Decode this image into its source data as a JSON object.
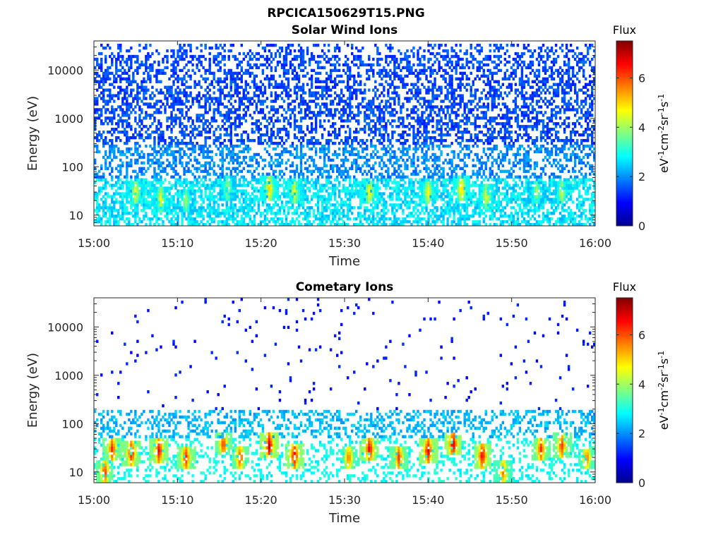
{
  "figure_title": "RPCICA150629T15.PNG",
  "colormap": [
    "#00008f",
    "#0000ff",
    "#0080ff",
    "#00ffff",
    "#80ff80",
    "#ffff00",
    "#ff8000",
    "#ff0000",
    "#800000"
  ],
  "chart_data": [
    {
      "type": "heatmap",
      "title": "Solar Wind Ions",
      "xlabel": "Time",
      "ylabel": "Energy (eV)",
      "x_range": [
        "15:00",
        "16:00"
      ],
      "x_ticks": [
        "15:00",
        "15:10",
        "15:20",
        "15:30",
        "15:40",
        "15:50",
        "16:00"
      ],
      "y_scale": "log",
      "y_range": [
        6,
        40000
      ],
      "y_ticks": [
        "10",
        "100",
        "1000",
        "10000"
      ],
      "colorbar": {
        "title": "Flux",
        "unit": "eV-1cm-2sr-1s-1",
        "range": [
          0,
          7.5
        ],
        "ticks": [
          "0",
          "2",
          "4",
          "6"
        ]
      },
      "description": "Dense speckle at flux ~1-2 from ~50 eV to ~30000 eV; flux ~2-3 between 10-80 eV; patches ~4-5 near 20-40 eV",
      "patches": [
        {
          "t": 5,
          "e": 30,
          "flux": 4.8
        },
        {
          "t": 8,
          "e": 22,
          "flux": 4.7
        },
        {
          "t": 11,
          "e": 20,
          "flux": 4.2
        },
        {
          "t": 16,
          "e": 35,
          "flux": 4.3
        },
        {
          "t": 21,
          "e": 35,
          "flux": 5.2
        },
        {
          "t": 24,
          "e": 30,
          "flux": 4.8
        },
        {
          "t": 33,
          "e": 30,
          "flux": 5.0
        },
        {
          "t": 40,
          "e": 30,
          "flux": 4.9
        },
        {
          "t": 44,
          "e": 35,
          "flux": 5.3
        },
        {
          "t": 47,
          "e": 25,
          "flux": 4.8
        },
        {
          "t": 53,
          "e": 30,
          "flux": 4.2
        },
        {
          "t": 56,
          "e": 30,
          "flux": 4.5
        }
      ]
    },
    {
      "type": "heatmap",
      "title": "Cometary Ions",
      "xlabel": "Time",
      "ylabel": "Energy (eV)",
      "x_range": [
        "15:00",
        "16:00"
      ],
      "x_ticks": [
        "15:00",
        "15:10",
        "15:20",
        "15:30",
        "15:40",
        "15:50",
        "16:00"
      ],
      "y_scale": "log",
      "y_range": [
        6,
        40000
      ],
      "y_ticks": [
        "10",
        "100",
        "1000",
        "10000"
      ],
      "colorbar": {
        "title": "Flux",
        "unit": "eV-1cm-2sr-1s-1",
        "range": [
          0,
          7.5
        ],
        "ticks": [
          "0",
          "2",
          "4",
          "6"
        ]
      },
      "description": "Sparse points at flux ~1 above 200 eV; flux ~2-3 band 50-150 eV; intense bursts ~5-7 at 15-40 eV",
      "patches": [
        {
          "t": 1.3,
          "e": 10,
          "flux": 6.5
        },
        {
          "t": 2.2,
          "e": 30,
          "flux": 6.6
        },
        {
          "t": 4.5,
          "e": 25,
          "flux": 6.8
        },
        {
          "t": 7.8,
          "e": 28,
          "flux": 6.9
        },
        {
          "t": 11,
          "e": 20,
          "flux": 6.7
        },
        {
          "t": 15.5,
          "e": 38,
          "flux": 6.5
        },
        {
          "t": 17.5,
          "e": 20,
          "flux": 6.4
        },
        {
          "t": 21,
          "e": 35,
          "flux": 7.2
        },
        {
          "t": 24,
          "e": 22,
          "flux": 7.0
        },
        {
          "t": 30.5,
          "e": 20,
          "flux": 6.0
        },
        {
          "t": 33,
          "e": 30,
          "flux": 7.0
        },
        {
          "t": 36.5,
          "e": 20,
          "flux": 6.4
        },
        {
          "t": 40,
          "e": 28,
          "flux": 7.0
        },
        {
          "t": 43,
          "e": 38,
          "flux": 7.2
        },
        {
          "t": 46.5,
          "e": 22,
          "flux": 7.0
        },
        {
          "t": 49,
          "e": 10,
          "flux": 6.0
        },
        {
          "t": 53.5,
          "e": 30,
          "flux": 6.5
        },
        {
          "t": 56,
          "e": 35,
          "flux": 6.5
        },
        {
          "t": 59,
          "e": 20,
          "flux": 6.0
        }
      ]
    }
  ]
}
